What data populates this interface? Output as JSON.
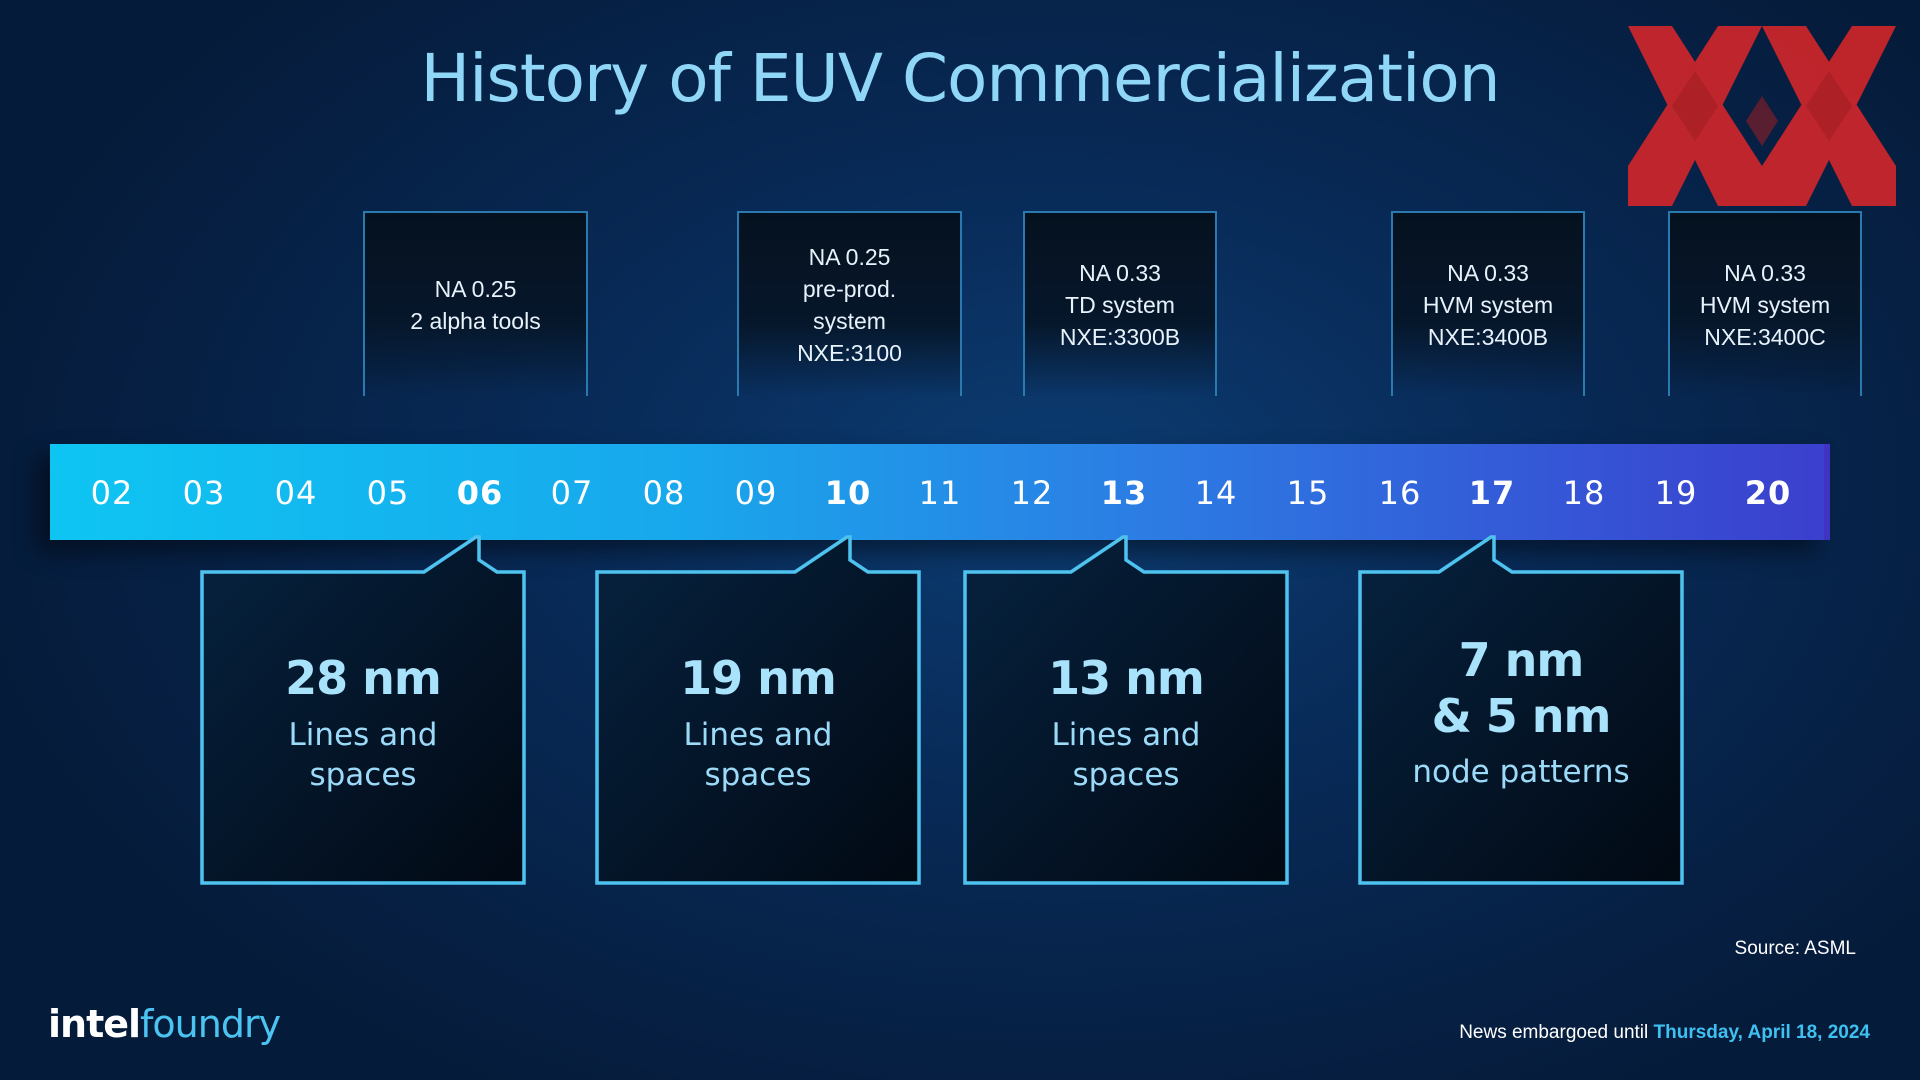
{
  "title": "History of EUV Commercialization",
  "milestones": [
    {
      "lines": [
        "NA 0.25",
        "2 alpha tools"
      ]
    },
    {
      "lines": [
        "NA 0.25",
        "pre-prod.",
        "system",
        "NXE:3100"
      ]
    },
    {
      "lines": [
        "NA 0.33",
        "TD system",
        "NXE:3300B"
      ]
    },
    {
      "lines": [
        "NA 0.33",
        "HVM system",
        "NXE:3400B"
      ]
    },
    {
      "lines": [
        "NA 0.33",
        "HVM system",
        "NXE:3400C"
      ]
    }
  ],
  "years": [
    "02",
    "03",
    "04",
    "05",
    "06",
    "07",
    "08",
    "09",
    "10",
    "11",
    "12",
    "13",
    "14",
    "15",
    "16",
    "17",
    "18",
    "19",
    "20"
  ],
  "bold_years": [
    "06",
    "10",
    "13",
    "17",
    "20"
  ],
  "callouts": [
    {
      "big": [
        "28 nm"
      ],
      "sub": [
        "Lines and",
        "spaces"
      ]
    },
    {
      "big": [
        "19 nm"
      ],
      "sub": [
        "Lines and",
        "spaces"
      ]
    },
    {
      "big": [
        "13 nm"
      ],
      "sub": [
        "Lines and",
        "spaces"
      ]
    },
    {
      "big": [
        "7 nm",
        "& 5 nm"
      ],
      "sub": [
        "node patterns"
      ]
    }
  ],
  "source": "Source: ASML",
  "brand": {
    "part1": "intel",
    "part2": "foundry"
  },
  "embargo": {
    "prefix": "News embargoed until ",
    "date": "Thursday, April 18, 2024"
  },
  "colors": {
    "title": "#8fd6f7",
    "callout_border": "#4fc3f0",
    "logo_red": "#c8262b",
    "embargo_date": "#3fc0f2"
  }
}
